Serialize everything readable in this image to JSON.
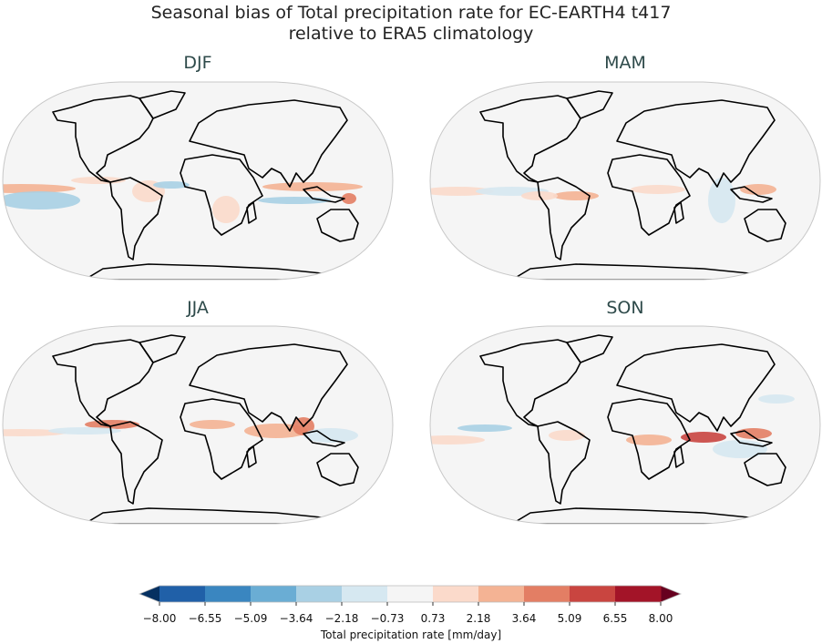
{
  "figure": {
    "title_line1": "Seasonal bias of Total precipitation rate for EC-EARTH4 t417",
    "title_line2": "relative to ERA5 climatology"
  },
  "panels": [
    {
      "season": "DJF"
    },
    {
      "season": "MAM"
    },
    {
      "season": "JJA"
    },
    {
      "season": "SON"
    }
  ],
  "colorbar": {
    "label": "Total precipitation rate [mm/day]",
    "ticks": [
      "−8.00",
      "−6.55",
      "−5.09",
      "−3.64",
      "−2.18",
      "−0.73",
      "0.73",
      "2.18",
      "3.64",
      "5.09",
      "6.55",
      "8.00"
    ],
    "colors": [
      "#2060a8",
      "#3a86c0",
      "#6aadd4",
      "#a9d0e4",
      "#d6e8f1",
      "#f5f5f5",
      "#fbdacb",
      "#f4b394",
      "#e37e64",
      "#c94540",
      "#a31428"
    ],
    "under_color": "#053061",
    "over_color": "#67001f",
    "colormap": "RdBu_r",
    "extend": "both"
  }
}
